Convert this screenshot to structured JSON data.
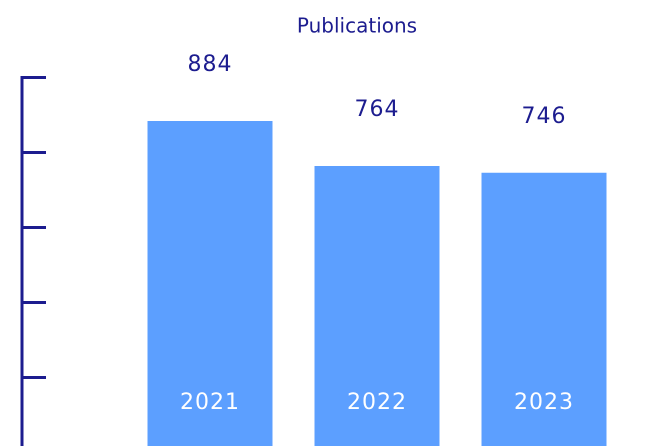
{
  "chart_data": {
    "type": "bar",
    "title": "Publications",
    "categories": [
      "2021",
      "2022",
      "2023"
    ],
    "values": [
      884,
      764,
      746
    ],
    "color": "#5c9fff",
    "axis_color": "#1c1c8f",
    "ylim": [
      0,
      1000
    ],
    "yticks": [
      200,
      400,
      600,
      800,
      1000
    ],
    "grid": false
  }
}
